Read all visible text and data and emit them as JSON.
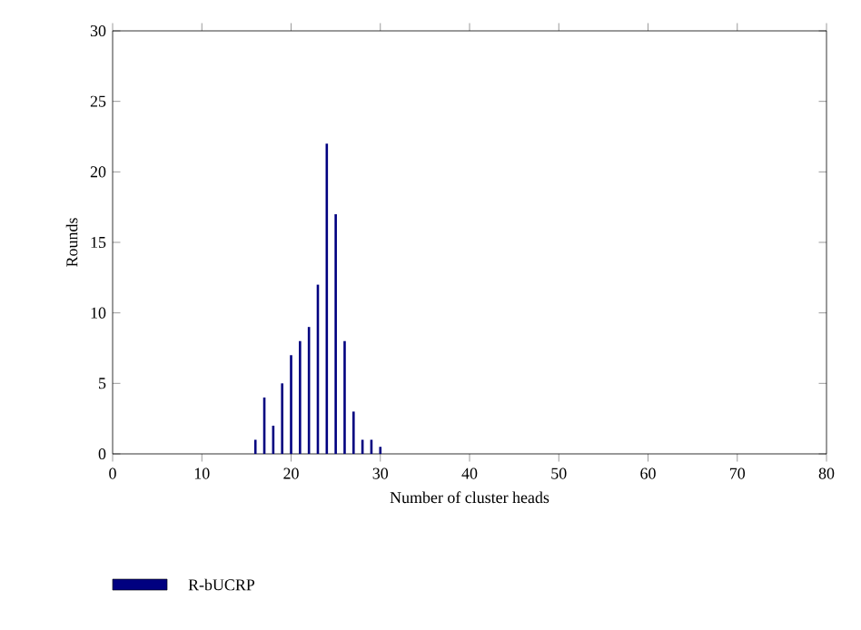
{
  "chart_data": {
    "type": "bar",
    "xlabel": "Number of cluster heads",
    "ylabel": "Rounds",
    "x": [
      16,
      17,
      18,
      19,
      20,
      21,
      22,
      23,
      24,
      25,
      26,
      27,
      28,
      29,
      30
    ],
    "series": [
      {
        "name": "R-bUCRP",
        "color": "#000080",
        "values": [
          1,
          4,
          2,
          5,
          7,
          8,
          9,
          12,
          22,
          17,
          8,
          3,
          1,
          1,
          0.5
        ]
      }
    ],
    "xlim": [
      0,
      80
    ],
    "xticks": [
      0,
      10,
      20,
      30,
      40,
      50,
      60,
      70,
      80
    ],
    "ylim": [
      0,
      30
    ],
    "yticks": [
      0,
      5,
      10,
      15,
      20,
      25,
      30
    ],
    "grid": false,
    "legend": "bottom left"
  }
}
